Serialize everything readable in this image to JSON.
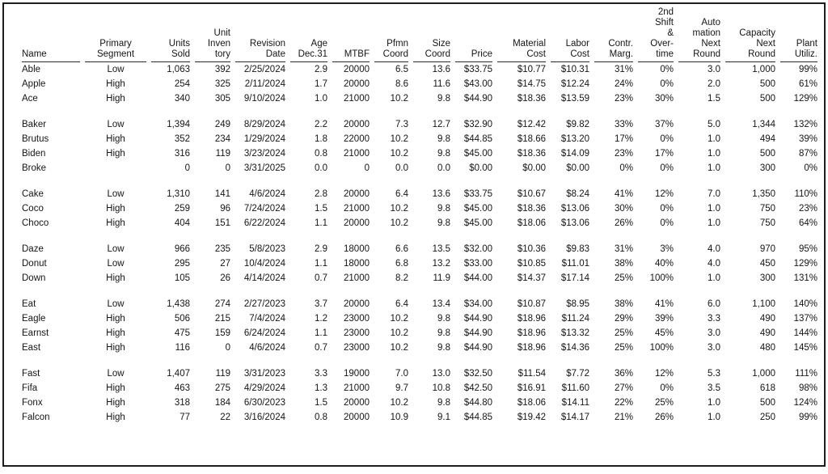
{
  "page": {
    "background": "#ffffff",
    "border_color": "#1d1d1d",
    "text_color": "#151515"
  },
  "table": {
    "columns": [
      {
        "key": "name",
        "label": "Name"
      },
      {
        "key": "segment",
        "label": "Primary\nSegment"
      },
      {
        "key": "units-sold",
        "label": "Units\nSold"
      },
      {
        "key": "inventory",
        "label": "Unit\nInven\ntory"
      },
      {
        "key": "revision-date",
        "label": "Revision\nDate"
      },
      {
        "key": "age",
        "label": "Age\nDec.31"
      },
      {
        "key": "mtbf",
        "label": "MTBF"
      },
      {
        "key": "pfmn-coord",
        "label": "Pfmn\nCoord"
      },
      {
        "key": "size-coord",
        "label": "Size\nCoord"
      },
      {
        "key": "price",
        "label": "Price"
      },
      {
        "key": "material-cost",
        "label": "Material\nCost"
      },
      {
        "key": "labor-cost",
        "label": "Labor\nCost"
      },
      {
        "key": "contr-marg",
        "label": "Contr.\nMarg."
      },
      {
        "key": "second-shift-overtime",
        "label": "2nd\nShift\n&\nOver-\ntime"
      },
      {
        "key": "automation-next-round",
        "label": "Auto\nmation\nNext\nRound"
      },
      {
        "key": "capacity-next-round",
        "label": "Capacity\nNext\nRound"
      },
      {
        "key": "plant-utiliz",
        "label": "Plant\nUtiliz."
      }
    ],
    "groups": [
      [
        [
          "Able",
          "Low",
          "1,063",
          "392",
          "2/25/2024",
          "2.9",
          "20000",
          "6.5",
          "13.6",
          "$33.75",
          "$10.77",
          "$10.31",
          "31%",
          "0%",
          "3.0",
          "1,000",
          "99%"
        ],
        [
          "Apple",
          "High",
          "254",
          "325",
          "2/11/2024",
          "1.7",
          "20000",
          "8.6",
          "11.6",
          "$43.00",
          "$14.75",
          "$12.24",
          "24%",
          "0%",
          "2.0",
          "500",
          "61%"
        ],
        [
          "Ace",
          "High",
          "340",
          "305",
          "9/10/2024",
          "1.0",
          "21000",
          "10.2",
          "9.8",
          "$44.90",
          "$18.36",
          "$13.59",
          "23%",
          "30%",
          "1.5",
          "500",
          "129%"
        ]
      ],
      [
        [
          "Baker",
          "Low",
          "1,394",
          "249",
          "8/29/2024",
          "2.2",
          "20000",
          "7.3",
          "12.7",
          "$32.90",
          "$12.42",
          "$9.82",
          "33%",
          "37%",
          "5.0",
          "1,344",
          "132%"
        ],
        [
          "Brutus",
          "High",
          "352",
          "234",
          "1/29/2024",
          "1.8",
          "22000",
          "10.2",
          "9.8",
          "$44.85",
          "$18.66",
          "$13.20",
          "17%",
          "0%",
          "1.0",
          "494",
          "39%"
        ],
        [
          "Biden",
          "High",
          "316",
          "119",
          "3/23/2024",
          "0.8",
          "21000",
          "10.2",
          "9.8",
          "$45.00",
          "$18.36",
          "$14.09",
          "23%",
          "17%",
          "1.0",
          "500",
          "87%"
        ],
        [
          "Broke",
          "",
          "0",
          "0",
          "3/31/2025",
          "0.0",
          "0",
          "0.0",
          "0.0",
          "$0.00",
          "$0.00",
          "$0.00",
          "0%",
          "0%",
          "1.0",
          "300",
          "0%"
        ]
      ],
      [
        [
          "Cake",
          "Low",
          "1,310",
          "141",
          "4/6/2024",
          "2.8",
          "20000",
          "6.4",
          "13.6",
          "$33.75",
          "$10.67",
          "$8.24",
          "41%",
          "12%",
          "7.0",
          "1,350",
          "110%"
        ],
        [
          "Coco",
          "High",
          "259",
          "96",
          "7/24/2024",
          "1.5",
          "21000",
          "10.2",
          "9.8",
          "$45.00",
          "$18.36",
          "$13.06",
          "30%",
          "0%",
          "1.0",
          "750",
          "23%"
        ],
        [
          "Choco",
          "High",
          "404",
          "151",
          "6/22/2024",
          "1.1",
          "20000",
          "10.2",
          "9.8",
          "$45.00",
          "$18.06",
          "$13.06",
          "26%",
          "0%",
          "1.0",
          "750",
          "64%"
        ]
      ],
      [
        [
          "Daze",
          "Low",
          "966",
          "235",
          "5/8/2023",
          "2.9",
          "18000",
          "6.6",
          "13.5",
          "$32.00",
          "$10.36",
          "$9.83",
          "31%",
          "3%",
          "4.0",
          "970",
          "95%"
        ],
        [
          "Donut",
          "Low",
          "295",
          "27",
          "10/4/2024",
          "1.1",
          "18000",
          "6.8",
          "13.2",
          "$33.00",
          "$10.85",
          "$11.01",
          "38%",
          "40%",
          "4.0",
          "450",
          "129%"
        ],
        [
          "Down",
          "High",
          "105",
          "26",
          "4/14/2024",
          "0.7",
          "21000",
          "8.2",
          "11.9",
          "$44.00",
          "$14.37",
          "$17.14",
          "25%",
          "100%",
          "1.0",
          "300",
          "131%"
        ]
      ],
      [
        [
          "Eat",
          "Low",
          "1,438",
          "274",
          "2/27/2023",
          "3.7",
          "20000",
          "6.4",
          "13.4",
          "$34.00",
          "$10.87",
          "$8.95",
          "38%",
          "41%",
          "6.0",
          "1,100",
          "140%"
        ],
        [
          "Eagle",
          "High",
          "506",
          "215",
          "7/4/2024",
          "1.2",
          "23000",
          "10.2",
          "9.8",
          "$44.90",
          "$18.96",
          "$11.24",
          "29%",
          "39%",
          "3.3",
          "490",
          "137%"
        ],
        [
          "Earnst",
          "High",
          "475",
          "159",
          "6/24/2024",
          "1.1",
          "23000",
          "10.2",
          "9.8",
          "$44.90",
          "$18.96",
          "$13.32",
          "25%",
          "45%",
          "3.0",
          "490",
          "144%"
        ],
        [
          "East",
          "High",
          "116",
          "0",
          "4/6/2024",
          "0.7",
          "23000",
          "10.2",
          "9.8",
          "$44.90",
          "$18.96",
          "$14.36",
          "25%",
          "100%",
          "3.0",
          "480",
          "145%"
        ]
      ],
      [
        [
          "Fast",
          "Low",
          "1,407",
          "119",
          "3/31/2023",
          "3.3",
          "19000",
          "7.0",
          "13.0",
          "$32.50",
          "$11.54",
          "$7.72",
          "36%",
          "12%",
          "5.3",
          "1,000",
          "111%"
        ],
        [
          "Fifa",
          "High",
          "463",
          "275",
          "4/29/2024",
          "1.3",
          "21000",
          "9.7",
          "10.8",
          "$42.50",
          "$16.91",
          "$11.60",
          "27%",
          "0%",
          "3.5",
          "618",
          "98%"
        ],
        [
          "Fonx",
          "High",
          "318",
          "184",
          "6/30/2023",
          "1.5",
          "20000",
          "10.2",
          "9.8",
          "$44.80",
          "$18.06",
          "$14.11",
          "22%",
          "25%",
          "1.0",
          "500",
          "124%"
        ],
        [
          "Falcon",
          "High",
          "77",
          "22",
          "3/16/2024",
          "0.8",
          "20000",
          "10.9",
          "9.1",
          "$44.85",
          "$19.42",
          "$14.17",
          "21%",
          "26%",
          "1.0",
          "250",
          "99%"
        ]
      ]
    ]
  }
}
